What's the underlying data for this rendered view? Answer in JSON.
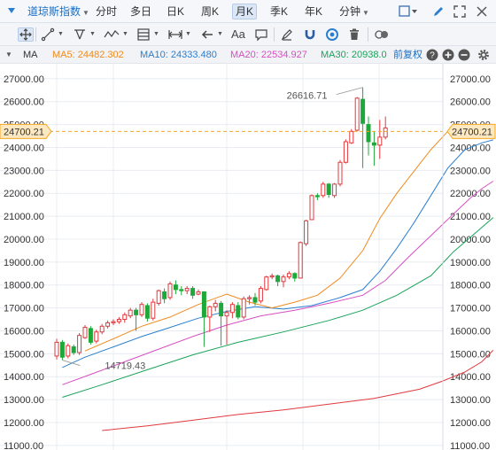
{
  "topbar": {
    "index_name": "道琼斯指数",
    "tabs": [
      {
        "label": "分时"
      },
      {
        "label": "多日"
      },
      {
        "label": "日K"
      },
      {
        "label": "周K"
      },
      {
        "label": "月K",
        "active": true
      },
      {
        "label": "季K"
      },
      {
        "label": "年K"
      },
      {
        "label": "分钟"
      }
    ]
  },
  "toolbar": {
    "text_tool_label": "Aa"
  },
  "indicator_bar": {
    "name": "MA",
    "ma5": "MA5: 24482.302",
    "ma10": "MA10: 24333.480",
    "ma20": "MA20: 22534.927",
    "ma30": "MA30: 20938.0",
    "adjust_label": "前复权"
  },
  "colors": {
    "up": "#e0393e",
    "down": "#1fa83a",
    "ma5": "#f08a1e",
    "ma10": "#2a7fd0",
    "ma20": "#d64fc3",
    "ma30": "#1aa35a",
    "ma_long": "#e0393e",
    "current_price_bg": "#fde8c0",
    "current_price_border": "#f5a623",
    "grid": "#e8ecf1"
  },
  "chart_data": {
    "type": "candlestick",
    "y_axis_ticks": [
      "27000.00",
      "26000.00",
      "25000.00",
      "24000.00",
      "23000.00",
      "22000.00",
      "21000.00",
      "20000.00",
      "19000.00",
      "18000.00",
      "17000.00",
      "16000.00",
      "15000.00",
      "14000.00",
      "13000.00",
      "12000.00",
      "11000.00"
    ],
    "ylim": [
      10800,
      27650
    ],
    "current_price": "24700.21",
    "annotations": {
      "high": "26616.71",
      "low": "14719.43"
    },
    "candles": [
      [
        14900,
        15500,
        14750,
        15650
      ],
      [
        15500,
        14850,
        14720,
        15600
      ],
      [
        14900,
        15350,
        14800,
        15450
      ],
      [
        15300,
        15050,
        14950,
        15400
      ],
      [
        15050,
        15800,
        14950,
        15900
      ],
      [
        15700,
        16150,
        15650,
        16250
      ],
      [
        16100,
        15500,
        15400,
        16200
      ],
      [
        15550,
        15950,
        15450,
        16050
      ],
      [
        15950,
        16200,
        15850,
        16300
      ],
      [
        16200,
        16350,
        16100,
        16450
      ],
      [
        16350,
        16400,
        16250,
        16500
      ],
      [
        16400,
        16500,
        16300,
        16600
      ],
      [
        16500,
        16700,
        16350,
        16800
      ],
      [
        16650,
        16900,
        16550,
        17000
      ],
      [
        16900,
        16700,
        16000,
        17000
      ],
      [
        16700,
        17150,
        16600,
        17250
      ],
      [
        17100,
        16550,
        16400,
        17200
      ],
      [
        16550,
        17250,
        16450,
        17400
      ],
      [
        17200,
        17750,
        17100,
        17800
      ],
      [
        17700,
        17400,
        17200,
        17850
      ],
      [
        17450,
        18050,
        17350,
        18150
      ],
      [
        18000,
        17800,
        17600,
        18200
      ],
      [
        17800,
        17750,
        17550,
        17950
      ],
      [
        17750,
        17850,
        17600,
        17950
      ],
      [
        17850,
        17550,
        17400,
        17950
      ],
      [
        17600,
        17700,
        17550,
        17800
      ],
      [
        17700,
        16600,
        15300,
        17700
      ],
      [
        16600,
        17050,
        15950,
        17100
      ],
      [
        17050,
        17200,
        16850,
        17350
      ],
      [
        17200,
        16650,
        15350,
        17300
      ],
      [
        16650,
        16800,
        15400,
        16900
      ],
      [
        16800,
        17150,
        16550,
        17250
      ],
      [
        17100,
        16600,
        16500,
        17250
      ],
      [
        16600,
        17400,
        16500,
        17500
      ],
      [
        17400,
        17450,
        17150,
        17550
      ],
      [
        17450,
        17250,
        17100,
        17650
      ],
      [
        17300,
        17850,
        17200,
        17950
      ],
      [
        17800,
        18350,
        17750,
        18400
      ],
      [
        18350,
        18400,
        18250,
        18500
      ],
      [
        18400,
        18150,
        17950,
        18450
      ],
      [
        18150,
        18350,
        17900,
        18450
      ],
      [
        18350,
        18500,
        18250,
        18600
      ],
      [
        18500,
        18300,
        18150,
        18550
      ],
      [
        18300,
        19850,
        18300,
        19900
      ],
      [
        19800,
        20800,
        19700,
        20850
      ],
      [
        20850,
        21900,
        20850,
        21950
      ],
      [
        21900,
        21850,
        21700,
        22000
      ],
      [
        21900,
        22400,
        21800,
        22500
      ],
      [
        22400,
        21950,
        21800,
        22450
      ],
      [
        21900,
        22400,
        21800,
        22450
      ],
      [
        22400,
        23350,
        22300,
        23450
      ],
      [
        23350,
        24250,
        23300,
        24350
      ],
      [
        24200,
        24700,
        24150,
        24800
      ],
      [
        24750,
        26150,
        24700,
        26200
      ],
      [
        26100,
        25050,
        23100,
        26620
      ],
      [
        25000,
        24250,
        23650,
        25350
      ],
      [
        24200,
        24100,
        23200,
        24700
      ],
      [
        24100,
        24450,
        23500,
        25200
      ],
      [
        24450,
        24850,
        24350,
        25350
      ]
    ],
    "ma5": [
      [
        5,
        15120
      ],
      [
        10,
        15650
      ],
      [
        15,
        16200
      ],
      [
        20,
        16600
      ],
      [
        25,
        17150
      ],
      [
        30,
        17600
      ],
      [
        34,
        17250
      ],
      [
        38,
        17000
      ],
      [
        42,
        17250
      ],
      [
        46,
        17550
      ],
      [
        50,
        18300
      ],
      [
        54,
        19500
      ],
      [
        57,
        20900
      ],
      [
        60,
        22000
      ],
      [
        63,
        22950
      ],
      [
        66,
        23900
      ],
      [
        69,
        24700
      ],
      [
        72,
        24750
      ],
      [
        75,
        24500
      ],
      [
        77,
        24480
      ]
    ],
    "ma10": [
      [
        1,
        14400
      ],
      [
        5,
        14850
      ],
      [
        10,
        15300
      ],
      [
        15,
        15750
      ],
      [
        20,
        16150
      ],
      [
        25,
        16550
      ],
      [
        30,
        16850
      ],
      [
        35,
        17050
      ],
      [
        40,
        16950
      ],
      [
        45,
        17100
      ],
      [
        50,
        17450
      ],
      [
        54,
        17800
      ],
      [
        57,
        18600
      ],
      [
        60,
        19600
      ],
      [
        63,
        20700
      ],
      [
        66,
        21900
      ],
      [
        69,
        23100
      ],
      [
        72,
        23900
      ],
      [
        75,
        24200
      ],
      [
        77,
        24330
      ]
    ],
    "ma20": [
      [
        1,
        13650
      ],
      [
        6,
        14100
      ],
      [
        12,
        14650
      ],
      [
        18,
        15200
      ],
      [
        24,
        15750
      ],
      [
        30,
        16250
      ],
      [
        36,
        16650
      ],
      [
        42,
        16900
      ],
      [
        48,
        17200
      ],
      [
        54,
        17550
      ],
      [
        58,
        18200
      ],
      [
        62,
        19200
      ],
      [
        66,
        20150
      ],
      [
        70,
        21100
      ],
      [
        73,
        21800
      ],
      [
        75,
        22200
      ],
      [
        77,
        22530
      ]
    ],
    "ma30": [
      [
        1,
        13100
      ],
      [
        8,
        13650
      ],
      [
        16,
        14300
      ],
      [
        24,
        14950
      ],
      [
        32,
        15500
      ],
      [
        40,
        15950
      ],
      [
        48,
        16450
      ],
      [
        54,
        16900
      ],
      [
        60,
        17550
      ],
      [
        66,
        18400
      ],
      [
        70,
        19450
      ],
      [
        74,
        20300
      ],
      [
        77,
        20940
      ]
    ],
    "ma_long": [
      [
        8,
        11650
      ],
      [
        16,
        11850
      ],
      [
        24,
        12100
      ],
      [
        32,
        12350
      ],
      [
        40,
        12550
      ],
      [
        48,
        12800
      ],
      [
        56,
        13050
      ],
      [
        64,
        13450
      ],
      [
        68,
        13800
      ],
      [
        72,
        14200
      ],
      [
        75,
        14650
      ],
      [
        77,
        15150
      ]
    ]
  }
}
